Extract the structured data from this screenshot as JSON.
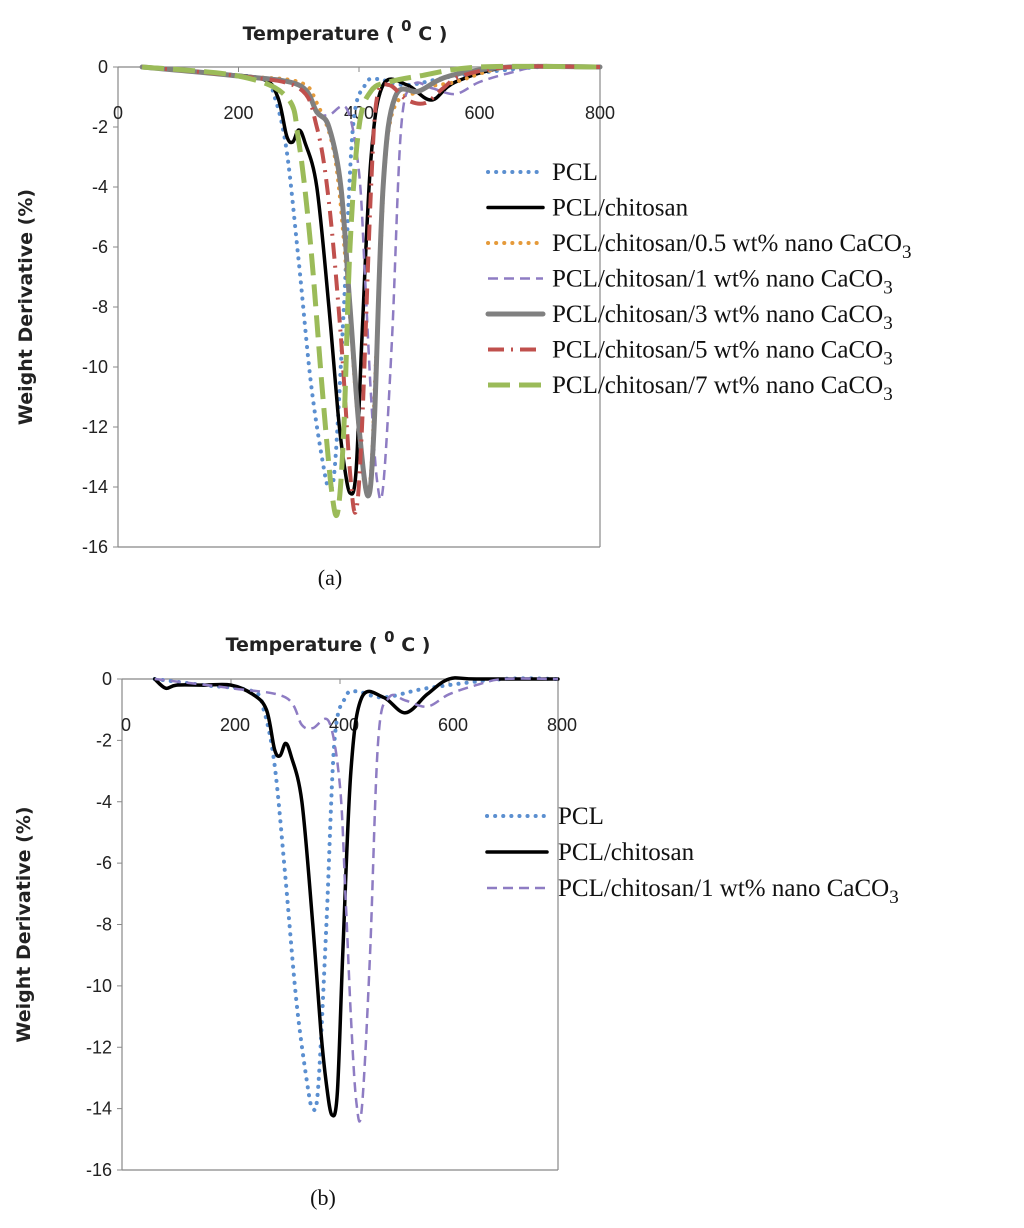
{
  "chart_data": [
    {
      "type": "line",
      "panel_label": "(a)",
      "xlabel_prefix": "Temperature ( ",
      "xlabel_sup": "0",
      "xlabel_suffix": " C )",
      "ylabel": "Weight Derivative (%)",
      "xlim": [
        0,
        800
      ],
      "ylim": [
        -16,
        0
      ],
      "x_ticks": [
        0,
        200,
        400,
        600,
        800
      ],
      "y_ticks": [
        0,
        -2,
        -4,
        -6,
        -8,
        -10,
        -12,
        -14,
        -16
      ],
      "grid": false,
      "legend_position": "right",
      "series": [
        {
          "name_main": "PCL",
          "name_sub": "",
          "color": "#5b8fd0",
          "dash": "dotted",
          "x": [
            40,
            150,
            240,
            260,
            280,
            300,
            320,
            340,
            350,
            360,
            375,
            390,
            410,
            430,
            480,
            560,
            700,
            800
          ],
          "y": [
            0,
            -0.2,
            -0.4,
            -1.0,
            -2.8,
            -6.5,
            -10.5,
            -13.2,
            -14.0,
            -13.3,
            -8,
            -2,
            -0.6,
            -0.4,
            -0.6,
            -0.3,
            0,
            0
          ]
        },
        {
          "name_main": "PCL/chitosan",
          "name_sub": "",
          "color": "#000000",
          "dash": "solid",
          "x": [
            40,
            150,
            240,
            265,
            280,
            290,
            300,
            310,
            330,
            350,
            365,
            375,
            385,
            395,
            405,
            420,
            440,
            480,
            520,
            560,
            650,
            800
          ],
          "y": [
            0,
            -0.2,
            -0.4,
            -1.0,
            -2.3,
            -2.5,
            -2.1,
            -2.5,
            -4,
            -8,
            -11.5,
            -13.2,
            -14.2,
            -13.5,
            -9,
            -3,
            -0.6,
            -0.6,
            -1.1,
            -0.5,
            0,
            0
          ]
        },
        {
          "name_main": "PCL/chitosan/0.5 wt% nano CaCO",
          "name_sub": "3",
          "color": "#e59a3a",
          "dash": "dotted",
          "x": [
            40,
            200,
            300,
            330,
            360,
            380,
            395,
            410,
            420,
            430,
            450,
            500,
            560,
            650,
            800
          ],
          "y": [
            0,
            -0.3,
            -0.5,
            -1.2,
            -3,
            -7,
            -11,
            -14,
            -13.5,
            -9,
            -2,
            -0.8,
            -0.5,
            0,
            0
          ]
        },
        {
          "name_main": "PCL/chitosan/1 wt% nano CaCO",
          "name_sub": "3",
          "color": "#8e7cc3",
          "dash": "dashed",
          "x": [
            40,
            200,
            300,
            330,
            350,
            380,
            400,
            410,
            420,
            430,
            440,
            455,
            470,
            490,
            520,
            560,
            600,
            650,
            700,
            800
          ],
          "y": [
            0,
            -0.3,
            -0.6,
            -1.5,
            -1.6,
            -1.4,
            -3.5,
            -7,
            -11,
            -13.8,
            -14.0,
            -9,
            -2,
            -0.6,
            -0.7,
            -0.9,
            -0.5,
            -0.2,
            0,
            0
          ]
        },
        {
          "name_main": "PCL/chitosan/3 wt% nano CaCO",
          "name_sub": "3",
          "color": "#808080",
          "dash": "solid",
          "x": [
            40,
            200,
            300,
            330,
            350,
            370,
            385,
            400,
            415,
            425,
            440,
            460,
            500,
            550,
            650,
            800
          ],
          "y": [
            0,
            -0.3,
            -0.6,
            -1.5,
            -2.0,
            -4,
            -8,
            -12,
            -14.3,
            -12,
            -4,
            -1,
            -0.8,
            -0.3,
            0,
            0
          ]
        },
        {
          "name_main": "PCL/chitosan/5 wt% nano CaCO",
          "name_sub": "3",
          "color": "#c0504d",
          "dash": "dashdot",
          "x": [
            40,
            200,
            300,
            330,
            350,
            370,
            385,
            395,
            405,
            420,
            430,
            450,
            480,
            510,
            540,
            570,
            650,
            800
          ],
          "y": [
            0,
            -0.3,
            -0.7,
            -2,
            -4.5,
            -9,
            -13.5,
            -14.8,
            -12,
            -4,
            -1,
            -0.6,
            -1.1,
            -1.2,
            -0.7,
            -0.3,
            0,
            0
          ]
        },
        {
          "name_main": "PCL/chitosan/7 wt% nano CaCO",
          "name_sub": "3",
          "color": "#9bbb59",
          "dash": "longdash",
          "x": [
            40,
            200,
            280,
            300,
            320,
            340,
            355,
            365,
            375,
            385,
            400,
            420,
            450,
            500,
            600,
            800
          ],
          "y": [
            0,
            -0.3,
            -1.0,
            -2.5,
            -6,
            -11,
            -14.2,
            -14.8,
            -12,
            -6,
            -2,
            -0.8,
            -0.5,
            -0.3,
            0,
            0
          ]
        }
      ]
    },
    {
      "type": "line",
      "panel_label": "(b)",
      "xlabel_prefix": "Temperature ( ",
      "xlabel_sup": "0",
      "xlabel_suffix": " C )",
      "ylabel": "Weight Derivative (%)",
      "xlim": [
        0,
        800
      ],
      "ylim": [
        -16,
        0
      ],
      "x_ticks": [
        0,
        200,
        400,
        600,
        800
      ],
      "y_ticks": [
        0,
        -2,
        -4,
        -6,
        -8,
        -10,
        -12,
        -14,
        -16
      ],
      "grid": false,
      "legend_position": "right",
      "series": [
        {
          "name_main": "PCL",
          "name_sub": "",
          "color": "#5b8fd0",
          "dash": "dotted",
          "x": [
            60,
            150,
            240,
            260,
            280,
            300,
            320,
            340,
            350,
            360,
            375,
            390,
            410,
            430,
            480,
            560,
            700,
            800
          ],
          "y": [
            0,
            -0.2,
            -0.4,
            -1.0,
            -2.8,
            -6.5,
            -10.5,
            -13.2,
            -14.0,
            -13.3,
            -8,
            -2,
            -0.6,
            -0.4,
            -0.6,
            -0.3,
            0,
            0
          ]
        },
        {
          "name_main": "PCL/chitosan",
          "name_sub": "",
          "color": "#000000",
          "dash": "solid",
          "x": [
            60,
            80,
            100,
            150,
            200,
            240,
            265,
            280,
            290,
            300,
            310,
            330,
            350,
            365,
            375,
            385,
            395,
            405,
            420,
            440,
            480,
            520,
            560,
            600,
            650,
            800
          ],
          "y": [
            0,
            -0.3,
            -0.2,
            -0.2,
            -0.2,
            -0.5,
            -1.0,
            -2.3,
            -2.5,
            -2.1,
            -2.5,
            -4,
            -8,
            -11.5,
            -13.2,
            -14.2,
            -13.5,
            -9,
            -3,
            -0.6,
            -0.6,
            -1.1,
            -0.5,
            0,
            0,
            0
          ]
        },
        {
          "name_main": "PCL/chitosan/1 wt% nano CaCO",
          "name_sub": "3",
          "color": "#8e7cc3",
          "dash": "dashed",
          "x": [
            60,
            200,
            300,
            330,
            350,
            380,
            400,
            410,
            420,
            430,
            440,
            455,
            470,
            490,
            520,
            560,
            600,
            650,
            700,
            800
          ],
          "y": [
            0,
            -0.3,
            -0.6,
            -1.5,
            -1.6,
            -1.4,
            -3.5,
            -7,
            -11,
            -13.8,
            -14.0,
            -9,
            -2,
            -0.6,
            -0.7,
            -0.9,
            -0.5,
            -0.2,
            0,
            0
          ]
        }
      ]
    }
  ]
}
